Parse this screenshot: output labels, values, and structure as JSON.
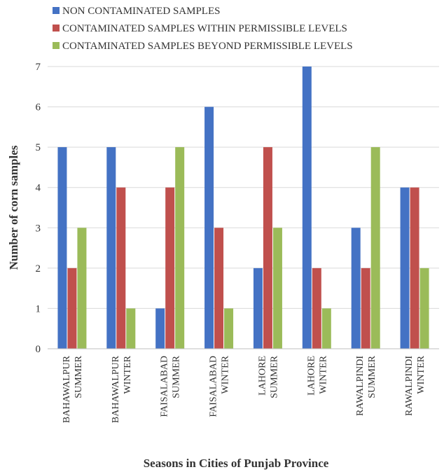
{
  "chart_data": {
    "type": "bar",
    "title": "",
    "xlabel": "Seasons in Cities of Punjab Province",
    "ylabel": "Number of corn samples",
    "ylim": [
      0,
      7
    ],
    "yticks": [
      0,
      1,
      2,
      3,
      4,
      5,
      6,
      7
    ],
    "grid": true,
    "legend_position": "top",
    "categories": [
      [
        "BAHAWALPUR",
        "SUMMER"
      ],
      [
        "BAHAWALPUR",
        "WINTER"
      ],
      [
        "FAISALABAD",
        "SUMMER"
      ],
      [
        "FAISALABAD",
        "WINTER"
      ],
      [
        "LAHORE",
        "SUMMER"
      ],
      [
        "LAHORE",
        "WINTER"
      ],
      [
        "RAWALPINDI",
        "SUMMER"
      ],
      [
        "RAWALPINDI",
        "WINTER"
      ]
    ],
    "series": [
      {
        "name": "NON CONTAMINATED SAMPLES",
        "color": "#4472C4",
        "values": [
          5,
          5,
          1,
          6,
          2,
          7,
          3,
          4
        ]
      },
      {
        "name": "CONTAMINATED SAMPLES WITHIN PERMISSIBLE LEVELS",
        "color": "#C0504D",
        "values": [
          2,
          4,
          4,
          3,
          5,
          2,
          2,
          4
        ]
      },
      {
        "name": "CONTAMINATED SAMPLES BEYOND PERMISSIBLE LEVELS",
        "color": "#9BBB59",
        "values": [
          3,
          1,
          5,
          1,
          3,
          1,
          5,
          2
        ]
      }
    ]
  }
}
